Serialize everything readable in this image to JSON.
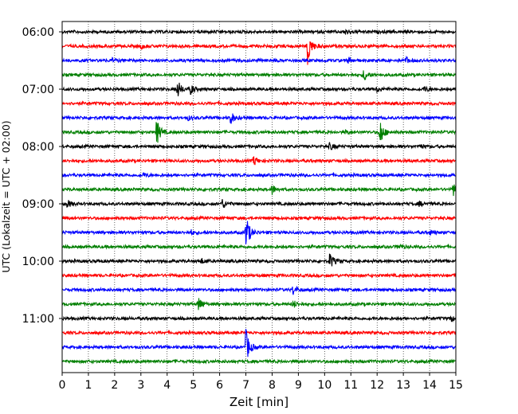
{
  "chart_data": {
    "type": "line",
    "subtype": "helicorder",
    "title": "",
    "xlabel": "Zeit  [min]",
    "ylabel": "UTC (Lokalzeit = UTC + 02:00)",
    "xlim": [
      0,
      15
    ],
    "x_ticks": [
      "0",
      "1",
      "2",
      "3",
      "4",
      "5",
      "6",
      "7",
      "8",
      "9",
      "10",
      "11",
      "12",
      "13",
      "14",
      "15"
    ],
    "grid": {
      "vertical": true,
      "style": "dotted"
    },
    "y_tick_labels": [
      "06:00",
      "07:00",
      "08:00",
      "09:00",
      "10:00",
      "11:00"
    ],
    "trace_colors": [
      "#000000",
      "#ff0000",
      "#0000ff",
      "#007f00"
    ],
    "traces": [
      {
        "start": "06:00",
        "events": [
          {
            "t": 10.8,
            "amp": 0.15
          }
        ]
      },
      {
        "start": "06:15",
        "events": [
          {
            "t": 3.0,
            "amp": 0.12
          },
          {
            "t": 9.35,
            "amp": 1.0
          }
        ]
      },
      {
        "start": "06:30",
        "events": [
          {
            "t": 1.9,
            "amp": 0.1
          },
          {
            "t": 10.9,
            "amp": 0.15
          },
          {
            "t": 13.1,
            "amp": 0.15
          }
        ]
      },
      {
        "start": "06:45",
        "events": [
          {
            "t": 11.5,
            "amp": 0.35
          }
        ]
      },
      {
        "start": "07:00",
        "events": [
          {
            "t": 4.4,
            "amp": 0.45
          },
          {
            "t": 4.9,
            "amp": 0.25
          },
          {
            "t": 12.0,
            "amp": 0.15
          },
          {
            "t": 13.8,
            "amp": 0.15
          }
        ]
      },
      {
        "start": "07:15",
        "events": []
      },
      {
        "start": "07:30",
        "events": [
          {
            "t": 4.8,
            "amp": 0.1
          },
          {
            "t": 6.4,
            "amp": 0.4
          }
        ]
      },
      {
        "start": "07:45",
        "events": [
          {
            "t": 3.6,
            "amp": 0.7
          },
          {
            "t": 10.8,
            "amp": 0.12
          },
          {
            "t": 12.1,
            "amp": 0.75
          }
        ]
      },
      {
        "start": "08:00",
        "events": [
          {
            "t": 10.2,
            "amp": 0.2
          },
          {
            "t": 13.6,
            "amp": 0.12
          }
        ]
      },
      {
        "start": "08:15",
        "events": [
          {
            "t": 7.3,
            "amp": 0.25
          }
        ]
      },
      {
        "start": "08:30",
        "events": [
          {
            "t": 3.1,
            "amp": 0.1
          }
        ]
      },
      {
        "start": "08:45",
        "events": [
          {
            "t": 8.0,
            "amp": 0.25
          },
          {
            "t": 14.9,
            "amp": 0.35
          }
        ]
      },
      {
        "start": "09:00",
        "events": [
          {
            "t": 0.2,
            "amp": 0.2
          },
          {
            "t": 6.1,
            "amp": 0.25
          },
          {
            "t": 13.6,
            "amp": 0.12
          }
        ]
      },
      {
        "start": "09:15",
        "events": []
      },
      {
        "start": "09:30",
        "events": [
          {
            "t": 4.9,
            "amp": 0.12
          },
          {
            "t": 7.0,
            "amp": 1.0
          },
          {
            "t": 14.0,
            "amp": 0.12
          }
        ]
      },
      {
        "start": "09:45",
        "events": [
          {
            "t": 12.8,
            "amp": 0.12
          }
        ]
      },
      {
        "start": "10:00",
        "events": [
          {
            "t": 5.3,
            "amp": 0.12
          },
          {
            "t": 10.2,
            "amp": 0.45
          }
        ]
      },
      {
        "start": "10:15",
        "events": []
      },
      {
        "start": "10:30",
        "events": [
          {
            "t": 8.8,
            "amp": 0.25
          }
        ]
      },
      {
        "start": "10:45",
        "events": [
          {
            "t": 5.2,
            "amp": 0.4
          },
          {
            "t": 8.8,
            "amp": 0.2
          }
        ]
      },
      {
        "start": "11:00",
        "events": [
          {
            "t": 14.8,
            "amp": 0.15
          }
        ]
      },
      {
        "start": "11:15",
        "events": []
      },
      {
        "start": "11:30",
        "events": [
          {
            "t": 7.0,
            "amp": 0.95
          }
        ]
      },
      {
        "start": "11:45",
        "events": []
      }
    ]
  }
}
